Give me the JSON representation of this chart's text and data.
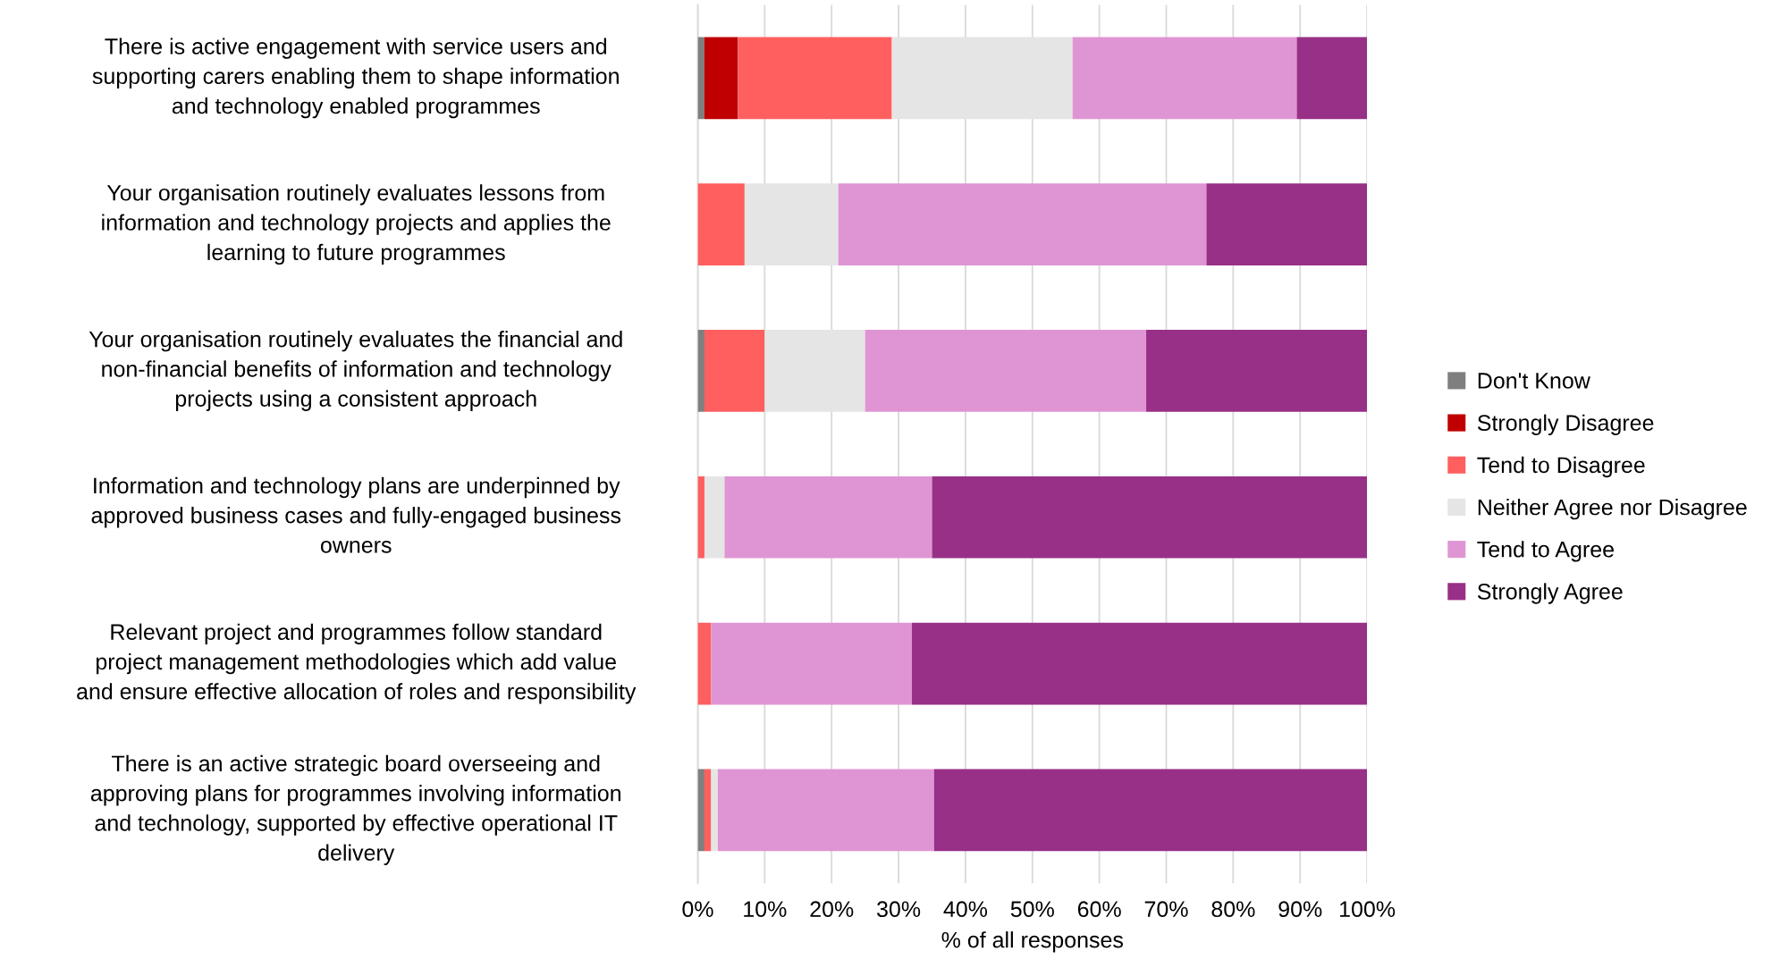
{
  "chart_data": {
    "type": "bar",
    "orientation": "horizontal",
    "stacked": true,
    "categories": [
      "There is active engagement with service users and\nsupporting carers enabling them to shape information\nand technology enabled programmes",
      "Your organisation routinely evaluates lessons from\ninformation and technology projects and applies the\nlearning to future programmes",
      "Your organisation routinely evaluates the financial and\nnon-financial benefits of information and technology\nprojects using a consistent approach",
      "Information and technology plans are underpinned by\napproved business cases and fully-engaged business\nowners",
      "Relevant project and programmes follow standard\nproject management methodologies which add value\nand ensure effective allocation of roles and responsibility",
      "There is an active strategic board overseeing and\napproving plans for programmes involving information\nand technology, supported by effective operational IT\ndelivery"
    ],
    "series": [
      {
        "name": "Don't Know",
        "color": "#7f7f7f",
        "values": [
          1,
          0,
          1,
          0,
          0,
          1
        ]
      },
      {
        "name": "Strongly Disagree",
        "color": "#c00000",
        "values": [
          5,
          0,
          0,
          0,
          0,
          0
        ]
      },
      {
        "name": "Tend to Disagree",
        "color": "#ff5f5f",
        "values": [
          23,
          7,
          9,
          1,
          2,
          1
        ]
      },
      {
        "name": "Neither Agree nor Disagree",
        "color": "#e5e5e5",
        "values": [
          27,
          14,
          15,
          3,
          0,
          1
        ]
      },
      {
        "name": "Tend to Agree",
        "color": "#df95d3",
        "values": [
          33.5,
          55,
          42,
          31,
          30,
          32.3
        ]
      },
      {
        "name": "Strongly Agree",
        "color": "#983087",
        "values": [
          10.5,
          24,
          33,
          65,
          68,
          64.7
        ]
      }
    ],
    "xlabel": "% of all responses",
    "xlim": [
      0,
      100
    ],
    "xticks": [
      {
        "value": 0,
        "label": "0%"
      },
      {
        "value": 10,
        "label": "10%"
      },
      {
        "value": 20,
        "label": "20%"
      },
      {
        "value": 30,
        "label": "30%"
      },
      {
        "value": 40,
        "label": "40%"
      },
      {
        "value": 50,
        "label": "50%"
      },
      {
        "value": 60,
        "label": "60%"
      },
      {
        "value": 70,
        "label": "70%"
      },
      {
        "value": 80,
        "label": "80%"
      },
      {
        "value": 90,
        "label": "90%"
      },
      {
        "value": 100,
        "label": "100%"
      }
    ],
    "grid": "x",
    "legend": "right"
  }
}
